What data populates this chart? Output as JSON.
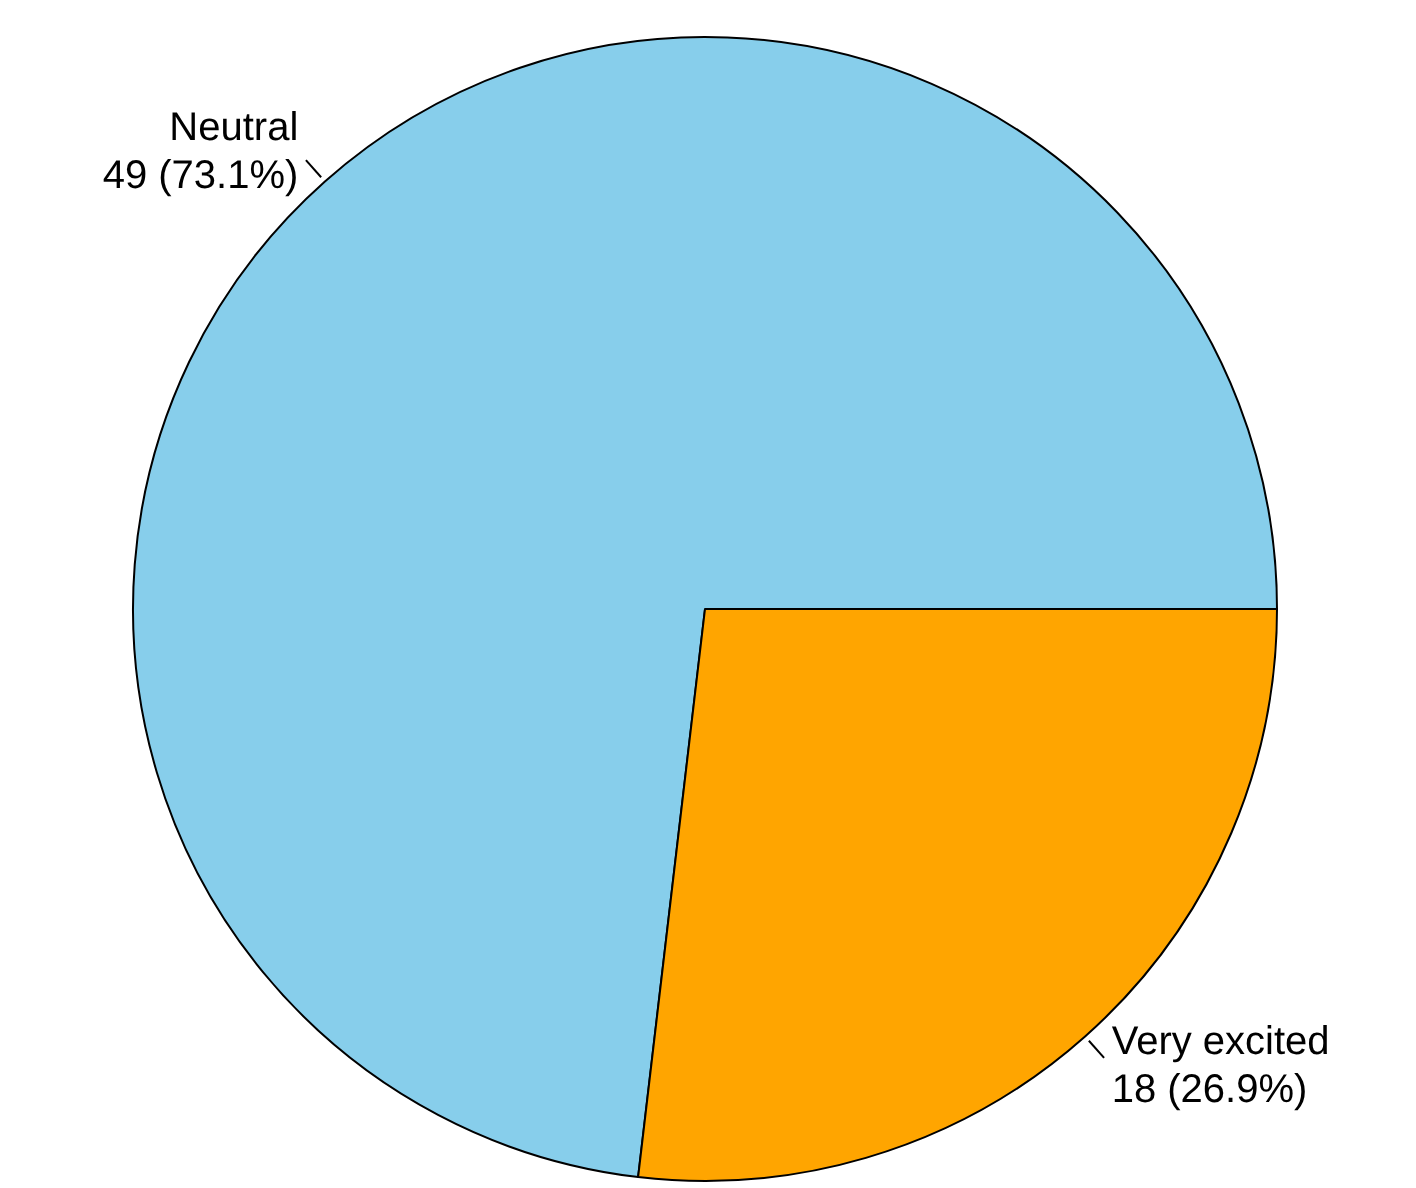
{
  "chart_data": {
    "type": "pie",
    "categories": [
      "Neutral",
      "Very excited"
    ],
    "values": [
      49,
      18
    ],
    "colors": [
      "#87ceeb",
      "#ffa500"
    ],
    "value_labels": [
      "49 (73.1%)",
      "18 (26.9%)"
    ]
  }
}
